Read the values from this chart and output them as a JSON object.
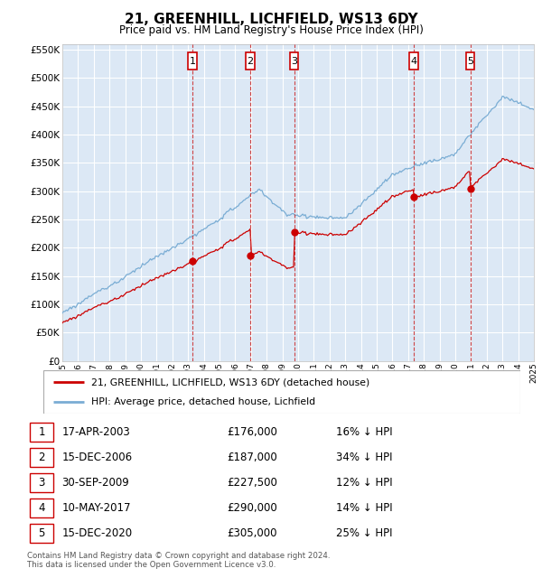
{
  "title": "21, GREENHILL, LICHFIELD, WS13 6DY",
  "subtitle": "Price paid vs. HM Land Registry's House Price Index (HPI)",
  "y_ticks": [
    0,
    50000,
    100000,
    150000,
    200000,
    250000,
    300000,
    350000,
    400000,
    450000,
    500000,
    550000
  ],
  "x_start_year": 1995,
  "x_end_year": 2025,
  "background_color": "#ffffff",
  "plot_bg_color": "#dce8f5",
  "grid_color": "#ffffff",
  "hpi_line_color": "#7aadd4",
  "price_line_color": "#cc0000",
  "sale_marker_color": "#cc0000",
  "sale_dashed_color": "#cc3333",
  "transactions": [
    {
      "num": 1,
      "date": "17-APR-2003",
      "year": 2003.29,
      "price": 176000,
      "label": "16% ↓ HPI"
    },
    {
      "num": 2,
      "date": "15-DEC-2006",
      "year": 2006.95,
      "price": 187000,
      "label": "34% ↓ HPI"
    },
    {
      "num": 3,
      "date": "30-SEP-2009",
      "year": 2009.75,
      "price": 227500,
      "label": "12% ↓ HPI"
    },
    {
      "num": 4,
      "date": "10-MAY-2017",
      "year": 2017.36,
      "price": 290000,
      "label": "14% ↓ HPI"
    },
    {
      "num": 5,
      "date": "15-DEC-2020",
      "year": 2020.95,
      "price": 305000,
      "label": "25% ↓ HPI"
    }
  ],
  "footer_text": "Contains HM Land Registry data © Crown copyright and database right 2024.\nThis data is licensed under the Open Government Licence v3.0.",
  "legend_line1": "21, GREENHILL, LICHFIELD, WS13 6DY (detached house)",
  "legend_line2": "HPI: Average price, detached house, Lichfield"
}
